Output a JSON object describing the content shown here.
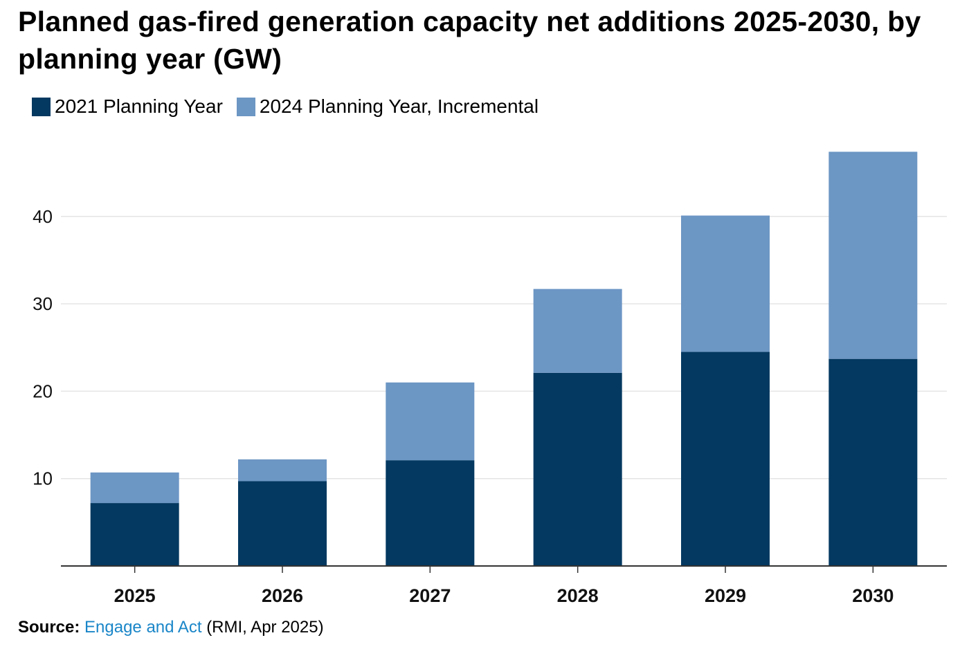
{
  "title": "Planned gas-fired generation capacity net additions 2025-2030, by planning year (GW)",
  "colors": {
    "dark": "#043961",
    "light": "#6c96c4",
    "grid": "#e4e4e4"
  },
  "source": {
    "label": "Source:",
    "link": "Engage and Act",
    "rest": "(RMI, Apr 2025)"
  },
  "chart_data": {
    "type": "bar",
    "stacked": true,
    "title": "Planned gas-fired generation capacity net additions 2025-2030, by planning year (GW)",
    "xlabel": "",
    "ylabel": "GW",
    "categories": [
      "2025",
      "2026",
      "2027",
      "2028",
      "2029",
      "2030"
    ],
    "series": [
      {
        "name": "2021 Planning Year",
        "values": [
          7.2,
          9.7,
          12.1,
          22.1,
          24.5,
          23.7
        ]
      },
      {
        "name": "2024 Planning Year, Incremental",
        "values": [
          3.5,
          2.5,
          8.9,
          9.6,
          15.6,
          23.7
        ]
      }
    ],
    "ylim": [
      0,
      50
    ],
    "yticks": [
      10,
      20,
      30,
      40
    ],
    "grid": true,
    "legend_position": "top-left"
  }
}
